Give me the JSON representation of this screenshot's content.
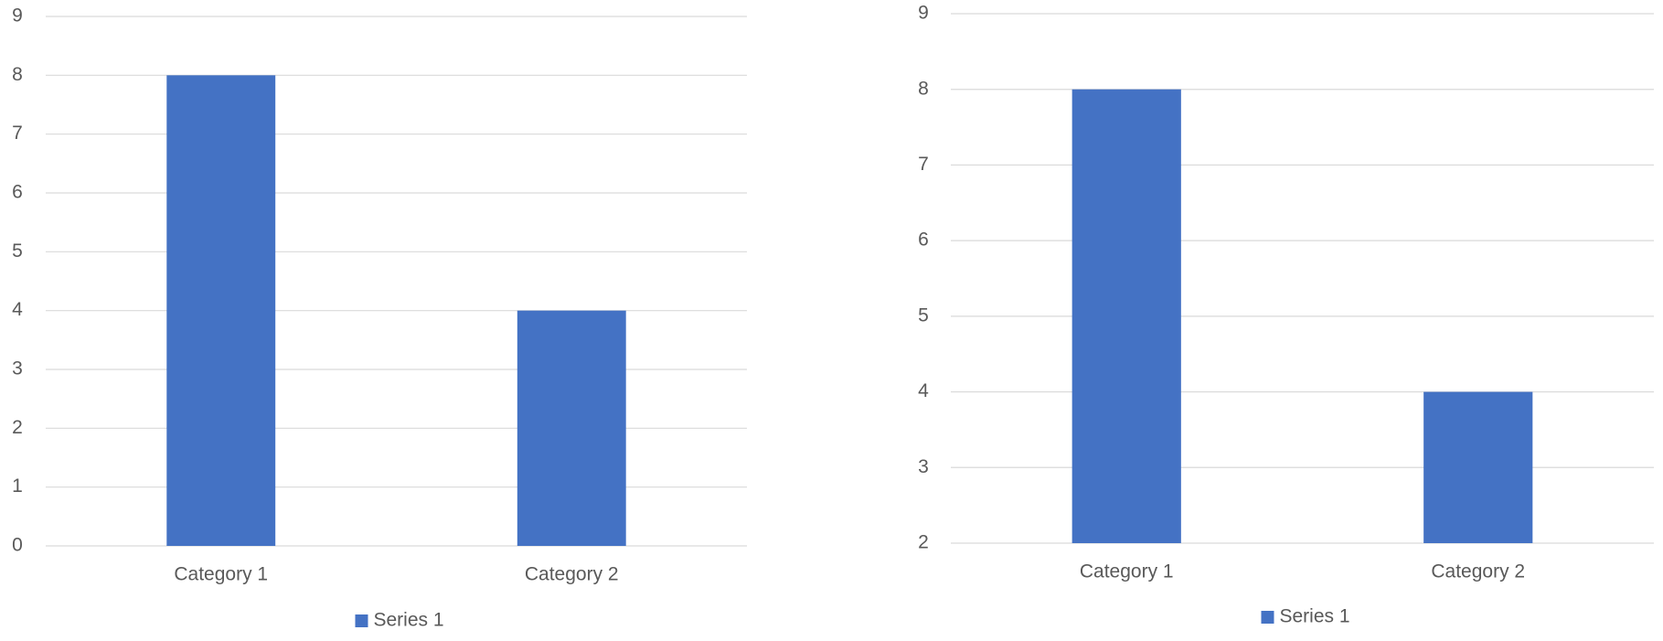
{
  "chart_data": [
    {
      "type": "bar",
      "categories": [
        "Category 1",
        "Category 2"
      ],
      "series": [
        {
          "name": "Series 1",
          "color": "#4472c4",
          "values": [
            8,
            4
          ]
        }
      ],
      "ylim": [
        0,
        9
      ],
      "yticks": [
        0,
        1,
        2,
        3,
        4,
        5,
        6,
        7,
        8,
        9
      ],
      "grid": true,
      "legend": "bottom"
    },
    {
      "type": "bar",
      "categories": [
        "Category 1",
        "Category 2"
      ],
      "series": [
        {
          "name": "Series 1",
          "color": "#4472c4",
          "values": [
            8,
            4
          ]
        }
      ],
      "ylim": [
        2,
        9
      ],
      "yticks": [
        2,
        3,
        4,
        5,
        6,
        7,
        8,
        9
      ],
      "grid": true,
      "legend": "bottom"
    }
  ]
}
